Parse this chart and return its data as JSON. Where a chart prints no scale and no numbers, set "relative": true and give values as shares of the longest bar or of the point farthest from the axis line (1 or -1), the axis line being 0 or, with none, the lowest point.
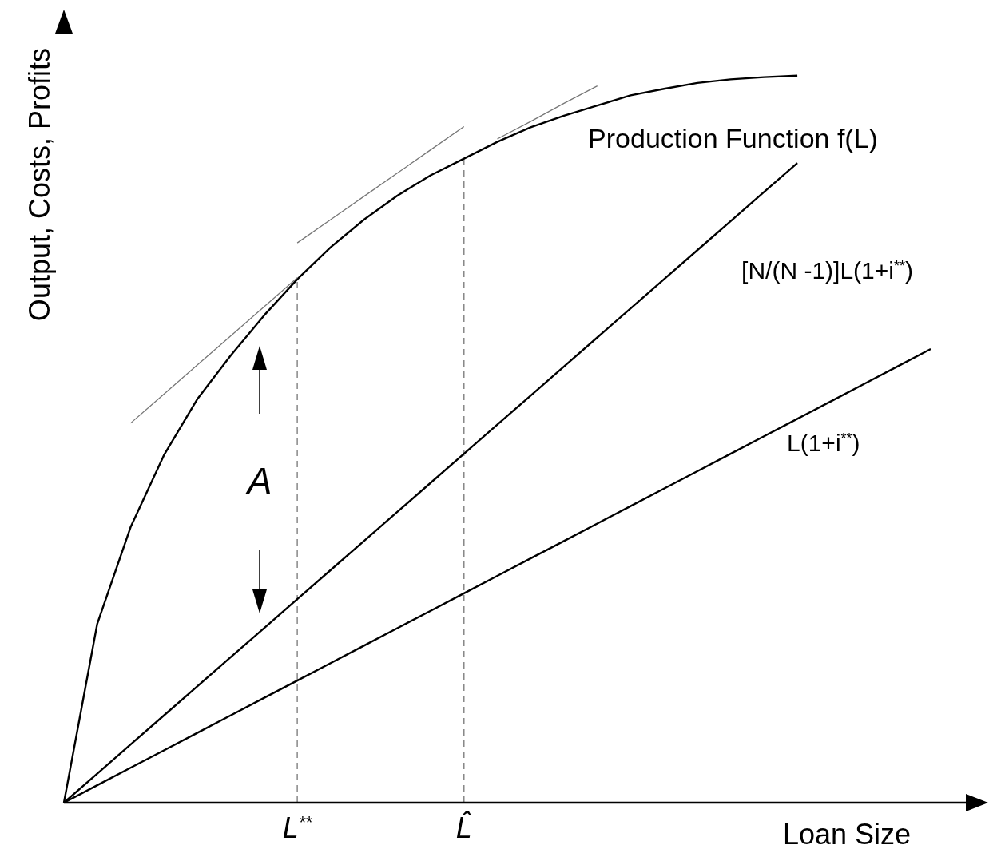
{
  "chart_data": {
    "type": "line",
    "relative": true,
    "xlabel": "Loan Size",
    "ylabel": "Output, Costs, Profits",
    "categories": [
      null,
      null,
      null,
      null,
      null,
      null,
      null,
      "L$^{**}$",
      null,
      null,
      null,
      null,
      "L̂",
      null,
      null,
      null,
      null,
      null,
      null,
      null,
      null,
      null,
      null,
      null,
      null,
      null,
      null
    ],
    "series": [
      {
        "name": "Production Function  f(L)",
        "color": "#000000",
        "values": [
          0,
          0.246,
          0.379,
          0.478,
          0.555,
          0.615,
          0.67,
          0.72,
          0.764,
          0.802,
          0.835,
          0.863,
          0.886,
          0.909,
          0.929,
          0.945,
          0.959,
          0.973,
          0.982,
          0.99,
          0.995,
          0.998,
          1.0,
          null,
          null,
          null,
          null
        ]
      },
      {
        "name": "[N/(N -1)]L(1+i$^{**}$)",
        "color": "#000000",
        "values": [
          0,
          0.04,
          0.08,
          0.12,
          0.16,
          0.2,
          0.24,
          0.28,
          0.32,
          0.36,
          0.4,
          0.44,
          0.48,
          0.52,
          0.56,
          0.6,
          0.64,
          0.68,
          0.72,
          0.76,
          0.8,
          0.84,
          0.88,
          null,
          null,
          null,
          null
        ]
      },
      {
        "name": "L(1+i$^{**}$)",
        "color": "#000000",
        "values": [
          0,
          0.024,
          0.048,
          0.072,
          0.096,
          0.12,
          0.144,
          0.168,
          0.192,
          0.216,
          0.24,
          0.264,
          0.288,
          0.312,
          0.336,
          0.36,
          0.384,
          0.408,
          0.432,
          0.456,
          0.48,
          0.504,
          0.528,
          0.552,
          0.576,
          0.6,
          0.624
        ]
      },
      {
        "color": "#777777",
        "values": [
          null,
          null,
          0.522,
          0.562,
          0.602,
          0.642,
          0.682,
          0.722,
          null,
          null,
          null,
          null,
          null,
          null,
          null,
          null,
          null,
          null,
          null,
          null,
          null,
          null,
          null,
          null,
          null,
          null,
          null
        ]
      },
      {
        "color": "#777777",
        "values": [
          null,
          null,
          null,
          null,
          null,
          null,
          null,
          0.77,
          0.802,
          0.834,
          0.866,
          0.898,
          0.93,
          null,
          null,
          null,
          null,
          null,
          null,
          null,
          null,
          null,
          null,
          null,
          null,
          null,
          null
        ]
      },
      {
        "color": "#777777",
        "values": [
          null,
          null,
          null,
          null,
          null,
          null,
          null,
          null,
          null,
          null,
          null,
          null,
          null,
          0.913,
          0.937,
          0.962,
          0.986,
          null,
          null,
          null,
          null,
          null,
          null,
          null,
          null,
          null,
          null
        ]
      }
    ],
    "ref_lines": [
      {
        "axis": "x",
        "value": "L$^{**}$",
        "line_style": "dashed",
        "color": "#888888"
      },
      {
        "axis": "x",
        "value": "L̂",
        "line_style": "dashed",
        "color": "#888888"
      }
    ],
    "annotations": [
      "A"
    ],
    "marker": "none",
    "legend": false,
    "grid": false
  }
}
